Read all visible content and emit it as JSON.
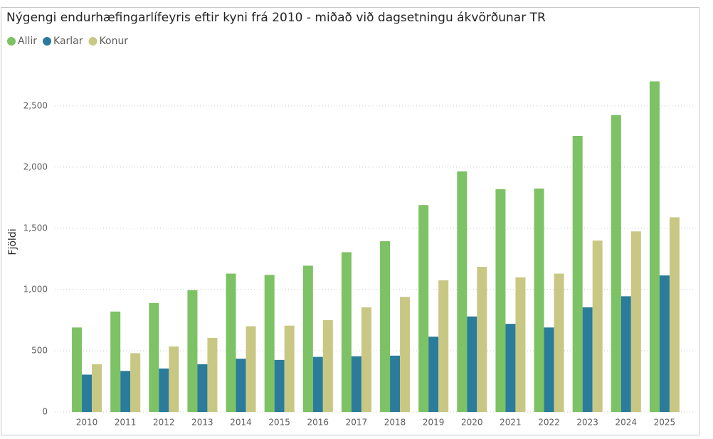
{
  "chart_data": {
    "type": "bar",
    "title": "Nýgengi endurhæfingarlífeyris eftir kyni frá 2010 - miðað við dagsetningu ákvörðunar TR",
    "y_label": "Fjöldi",
    "categories": [
      "2010",
      "2011",
      "2012",
      "2013",
      "2014",
      "2015",
      "2016",
      "2017",
      "2018",
      "2019",
      "2020",
      "2021",
      "2022",
      "2023",
      "2024",
      "2025"
    ],
    "series": [
      {
        "name": "Allir",
        "color": "#7dc264",
        "values": [
          690,
          820,
          890,
          995,
          1130,
          1120,
          1195,
          1305,
          1395,
          1690,
          1965,
          1820,
          1825,
          2255,
          2425,
          2700
        ]
      },
      {
        "name": "Karlar",
        "color": "#2b7b9b",
        "values": [
          305,
          335,
          355,
          390,
          435,
          425,
          450,
          455,
          460,
          615,
          780,
          720,
          690,
          855,
          945,
          1115
        ]
      },
      {
        "name": "Konur",
        "color": "#c8c884",
        "values": [
          390,
          480,
          535,
          605,
          700,
          705,
          750,
          855,
          940,
          1075,
          1185,
          1100,
          1130,
          1400,
          1475,
          1590
        ]
      }
    ],
    "ylim": [
      0,
      2900
    ],
    "yticks": [
      0,
      500,
      {
        "value": 1000,
        "label": "1,000"
      },
      {
        "value": 1500,
        "label": "1,500"
      },
      {
        "value": 2000,
        "label": "2,000"
      },
      {
        "value": 2500,
        "label": "2,500"
      }
    ],
    "grid": true
  }
}
